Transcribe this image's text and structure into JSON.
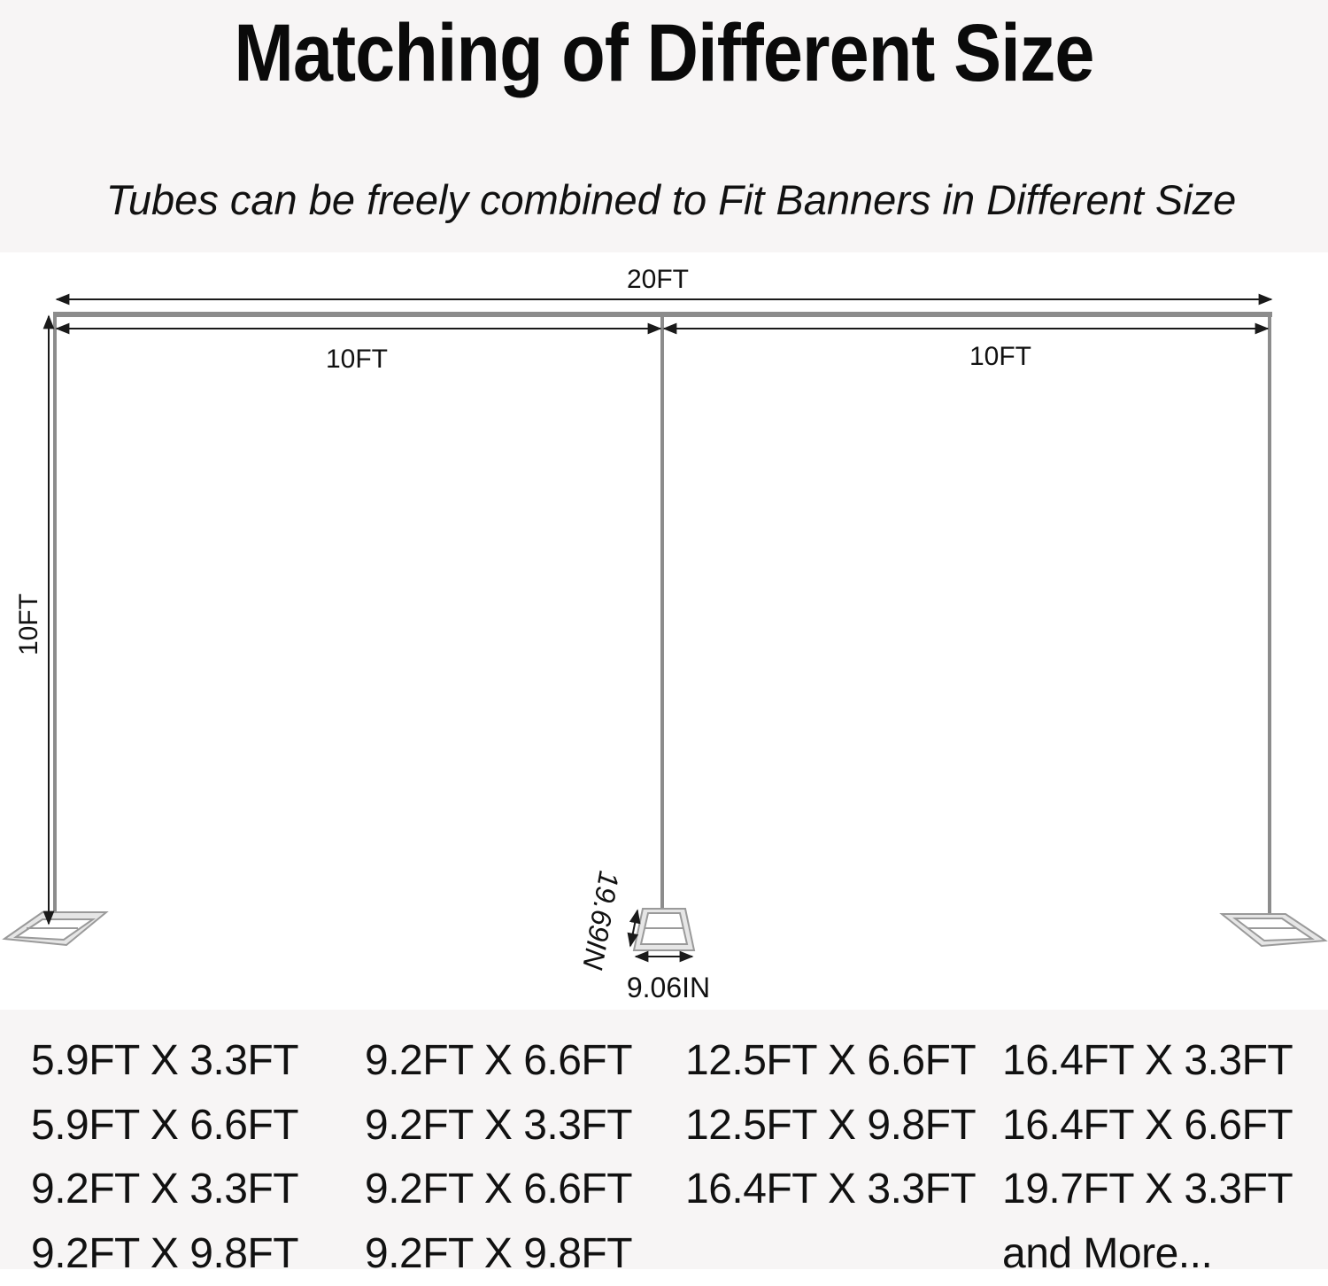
{
  "title": "Matching of Different Size",
  "subtitle": "Tubes can be freely combined to Fit Banners in Different Size",
  "dimensions": {
    "total_width": "20FT",
    "left_width": "10FT",
    "right_width": "10FT",
    "height": "10FT",
    "base_length": "19.69IN",
    "base_width": "9.06IN"
  },
  "colors": {
    "frame": "#8c8c8c",
    "arrow": "#1a1a1a",
    "panel_bg": "#f7f5f5"
  },
  "sizes": {
    "columns": [
      [
        "5.9FT X 3.3FT",
        "5.9FT X 6.6FT",
        "9.2FT X 3.3FT",
        "9.2FT X 9.8FT"
      ],
      [
        "9.2FT X 6.6FT",
        "9.2FT X 3.3FT",
        "9.2FT X 6.6FT",
        "9.2FT X 9.8FT"
      ],
      [
        "12.5FT X 6.6FT",
        "12.5FT X 9.8FT",
        "16.4FT X 3.3FT"
      ],
      [
        "16.4FT X 3.3FT",
        "16.4FT X 6.6FT",
        "19.7FT X 3.3FT",
        "and More..."
      ]
    ]
  }
}
